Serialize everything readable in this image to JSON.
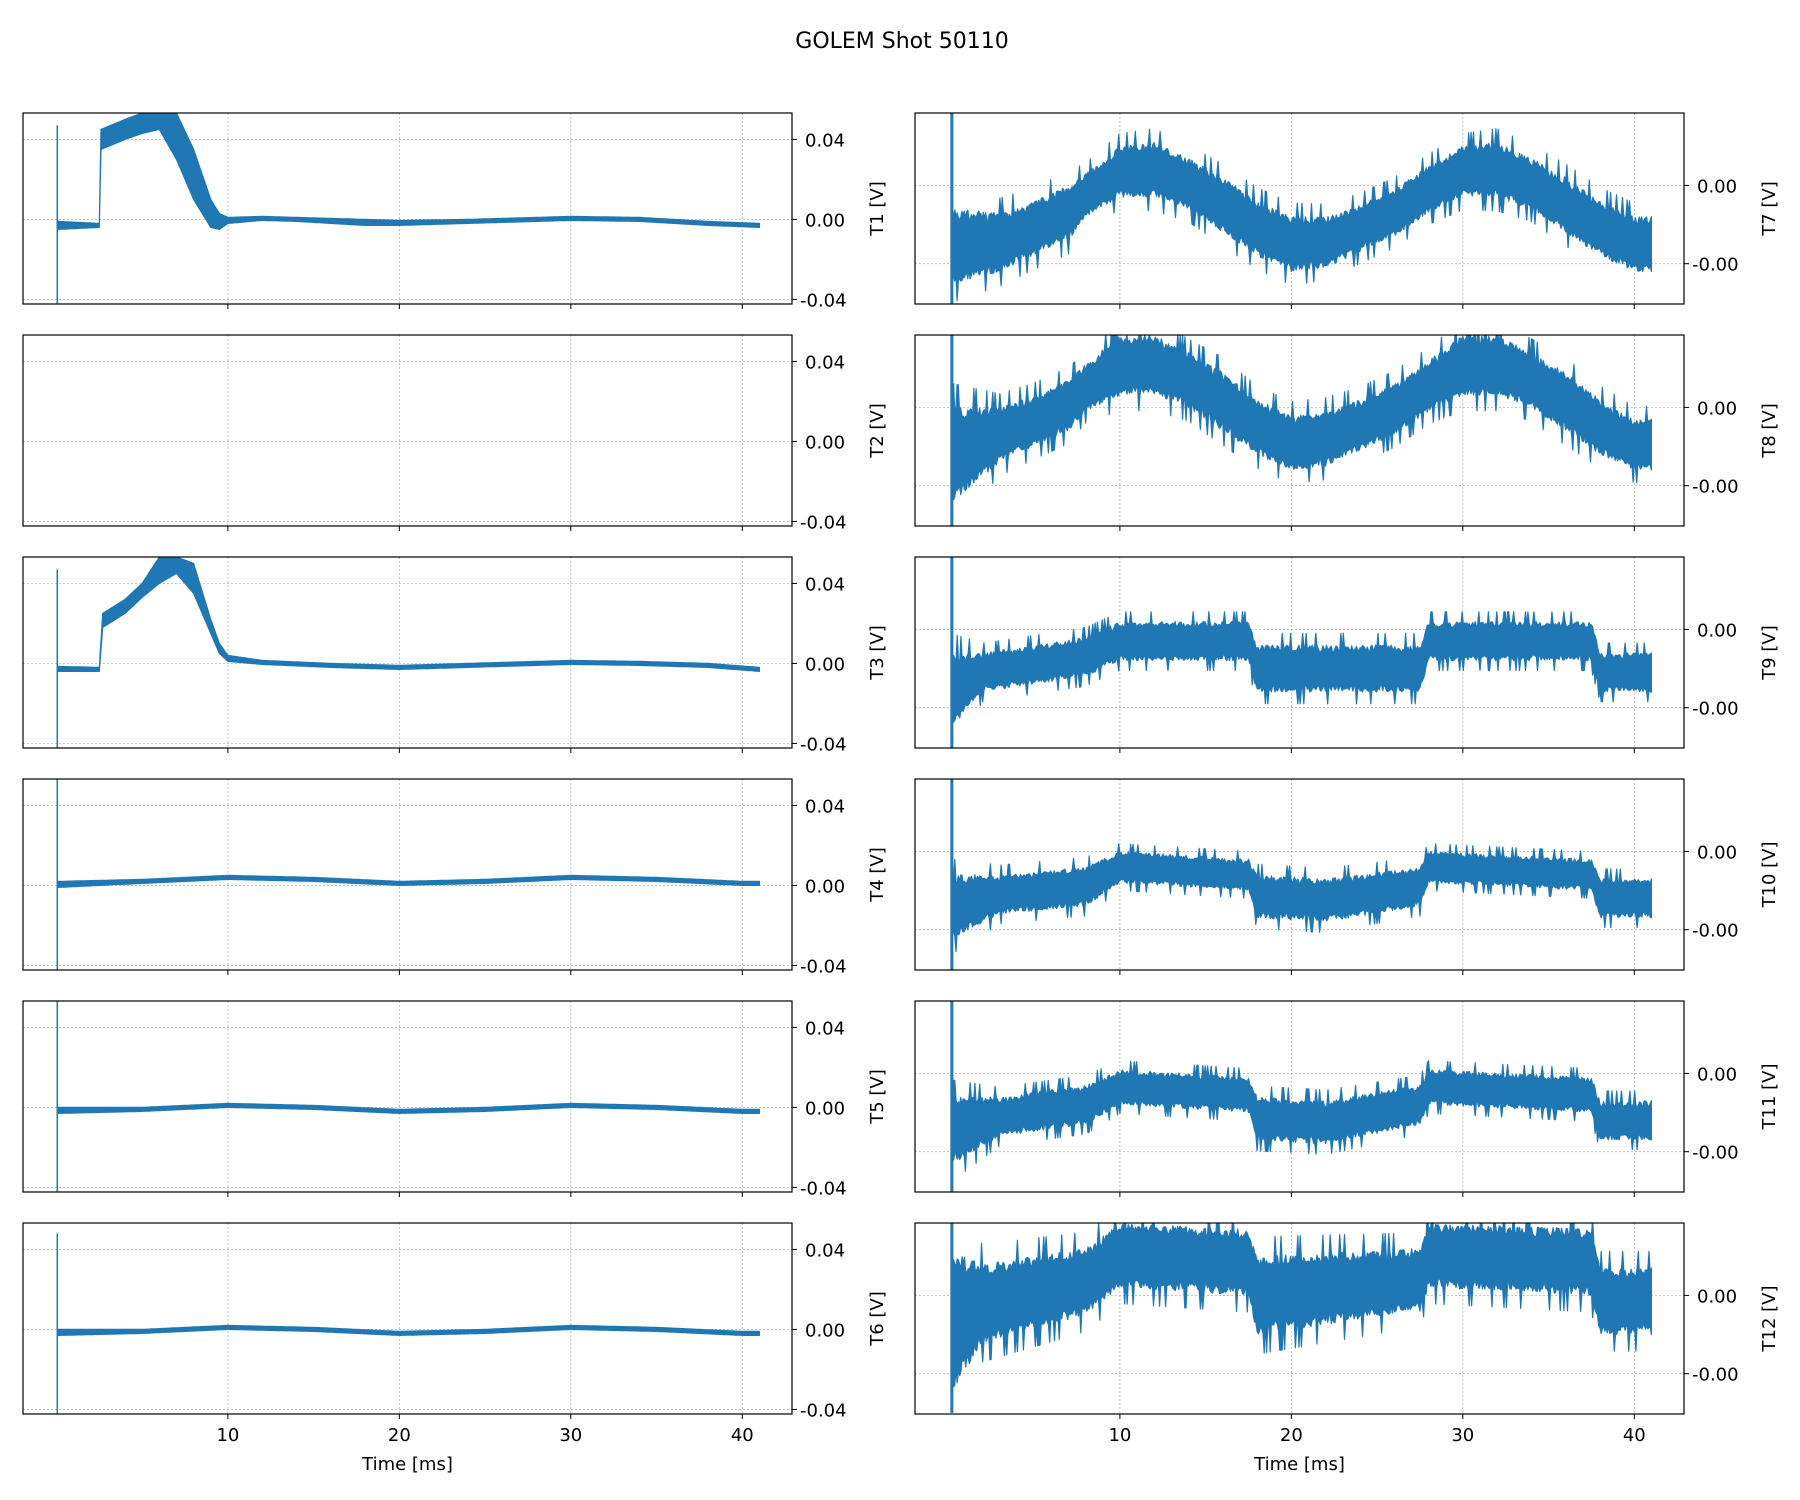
{
  "chart_data": {
    "type": "line",
    "title": "GOLEM Shot 50110",
    "xlabel": "Time [ms]",
    "xlim": [
      -1.95,
      42.9
    ],
    "xticks": [
      {
        "value": 10,
        "label": "10"
      },
      {
        "value": 20,
        "label": "20"
      },
      {
        "value": 30,
        "label": "30"
      },
      {
        "value": 40,
        "label": "40"
      }
    ],
    "color": "#1f77b4",
    "grid": true,
    "envelope_format": "[time_ms, min_V, max_V]",
    "panels": [
      {
        "ylabel": "T1 [V]",
        "column": "left",
        "ylim": [
          -0.0423,
          0.0532
        ],
        "yticks": [
          {
            "value": 0.04,
            "label": "0.04"
          },
          {
            "value": 0.0,
            "label": "0.00"
          },
          {
            "value": -0.04,
            "label": "-0.04"
          }
        ],
        "spike": [
          0.05,
          -0.0423,
          0.047
        ],
        "envelope": [
          [
            0.1,
            -0.005,
            -0.001
          ],
          [
            2.5,
            -0.004,
            -0.002
          ],
          [
            2.6,
            0.035,
            0.045
          ],
          [
            4,
            0.04,
            0.05
          ],
          [
            5,
            0.043,
            0.0532
          ],
          [
            6,
            0.045,
            0.0532
          ],
          [
            7,
            0.03,
            0.0532
          ],
          [
            8,
            0.01,
            0.035
          ],
          [
            9,
            -0.004,
            0.01
          ],
          [
            9.5,
            -0.005,
            0.003
          ],
          [
            10,
            -0.002,
            0.001
          ],
          [
            12,
            -0.0005,
            0.0015
          ],
          [
            14,
            -0.001,
            0.001
          ],
          [
            18,
            -0.003,
            0.0
          ],
          [
            20,
            -0.003,
            -0.0005
          ],
          [
            24,
            -0.002,
            0.0
          ],
          [
            28,
            -0.001,
            0.001
          ],
          [
            30,
            -0.0005,
            0.0015
          ],
          [
            34,
            -0.001,
            0.001
          ],
          [
            38,
            -0.003,
            -0.001
          ],
          [
            41,
            -0.004,
            -0.002
          ]
        ]
      },
      {
        "ylabel": "T2 [V]",
        "column": "left",
        "ylim": [
          -0.0423,
          0.0532
        ],
        "yticks": [
          {
            "value": 0.04,
            "label": "0.04"
          },
          {
            "value": 0.0,
            "label": "0.00"
          },
          {
            "value": -0.04,
            "label": "-0.04"
          }
        ],
        "spike": null,
        "envelope": []
      },
      {
        "ylabel": "T3 [V]",
        "column": "left",
        "ylim": [
          -0.0423,
          0.0532
        ],
        "yticks": [
          {
            "value": 0.04,
            "label": "0.04"
          },
          {
            "value": 0.0,
            "label": "0.00"
          },
          {
            "value": -0.04,
            "label": "-0.04"
          }
        ],
        "spike": [
          0.05,
          -0.0423,
          0.047
        ],
        "envelope": [
          [
            0.1,
            -0.004,
            -0.0015
          ],
          [
            2.5,
            -0.004,
            -0.002
          ],
          [
            2.7,
            0.018,
            0.025
          ],
          [
            4,
            0.025,
            0.032
          ],
          [
            5,
            0.033,
            0.04
          ],
          [
            6,
            0.04,
            0.0532
          ],
          [
            7,
            0.045,
            0.0532
          ],
          [
            8,
            0.035,
            0.05
          ],
          [
            9,
            0.015,
            0.022
          ],
          [
            9.5,
            0.005,
            0.01
          ],
          [
            10,
            0.001,
            0.004
          ],
          [
            12,
            -0.0005,
            0.0015
          ],
          [
            16,
            -0.002,
            0.0
          ],
          [
            20,
            -0.003,
            -0.001
          ],
          [
            24,
            -0.002,
            0.0
          ],
          [
            28,
            -0.001,
            0.001
          ],
          [
            30,
            -0.0005,
            0.0015
          ],
          [
            34,
            -0.001,
            0.001
          ],
          [
            38,
            -0.002,
            0.0
          ],
          [
            41,
            -0.004,
            -0.002
          ]
        ]
      },
      {
        "ylabel": "T4 [V]",
        "column": "left",
        "ylim": [
          -0.0423,
          0.0532
        ],
        "yticks": [
          {
            "value": 0.04,
            "label": "0.04"
          },
          {
            "value": 0.0,
            "label": "0.00"
          },
          {
            "value": -0.04,
            "label": "-0.04"
          }
        ],
        "spike": [
          0.05,
          -0.0423,
          0.0532
        ],
        "envelope": [
          [
            0.1,
            -0.001,
            0.002
          ],
          [
            5,
            0.001,
            0.003
          ],
          [
            10,
            0.003,
            0.005
          ],
          [
            15,
            0.002,
            0.004
          ],
          [
            20,
            0.0,
            0.002
          ],
          [
            25,
            0.001,
            0.003
          ],
          [
            30,
            0.003,
            0.005
          ],
          [
            35,
            0.002,
            0.004
          ],
          [
            40,
            0.0,
            0.002
          ],
          [
            41,
            0.0,
            0.002
          ]
        ]
      },
      {
        "ylabel": "T5 [V]",
        "column": "left",
        "ylim": [
          -0.0423,
          0.0532
        ],
        "yticks": [
          {
            "value": 0.04,
            "label": "0.04"
          },
          {
            "value": 0.0,
            "label": "0.00"
          },
          {
            "value": -0.04,
            "label": "-0.04"
          }
        ],
        "spike": [
          0.05,
          -0.0423,
          0.0532
        ],
        "envelope": [
          [
            0.1,
            -0.003,
            0.0
          ],
          [
            5,
            -0.002,
            0.0
          ],
          [
            10,
            0.0,
            0.002
          ],
          [
            15,
            -0.001,
            0.001
          ],
          [
            20,
            -0.003,
            -0.001
          ],
          [
            25,
            -0.002,
            0.0
          ],
          [
            30,
            0.0,
            0.002
          ],
          [
            35,
            -0.001,
            0.001
          ],
          [
            40,
            -0.003,
            -0.001
          ],
          [
            41,
            -0.003,
            -0.001
          ]
        ]
      },
      {
        "ylabel": "T6 [V]",
        "column": "left",
        "ylim": [
          -0.0423,
          0.0532
        ],
        "yticks": [
          {
            "value": 0.04,
            "label": "0.04"
          },
          {
            "value": 0.0,
            "label": "0.00"
          },
          {
            "value": -0.04,
            "label": "-0.04"
          }
        ],
        "spike": [
          0.05,
          -0.0423,
          0.048
        ],
        "envelope": [
          [
            0.1,
            -0.003,
            0.0
          ],
          [
            5,
            -0.002,
            0.0
          ],
          [
            10,
            0.0,
            0.002
          ],
          [
            15,
            -0.001,
            0.001
          ],
          [
            20,
            -0.003,
            -0.001
          ],
          [
            25,
            -0.002,
            0.0
          ],
          [
            30,
            0.0,
            0.002
          ],
          [
            35,
            -0.001,
            0.001
          ],
          [
            40,
            -0.003,
            -0.001
          ],
          [
            41,
            -0.003,
            -0.001
          ]
        ]
      },
      {
        "ylabel": "T7 [V]",
        "column": "right",
        "ylim": [
          -0.00203,
          0.00285
        ],
        "yticks": [
          {
            "value": 0.001,
            "label": "0.00"
          },
          {
            "value": -0.001,
            "label": "-0.00"
          }
        ],
        "spike": [
          0.2,
          -0.00203,
          0.00285
        ],
        "envelope": [
          [
            0.3,
            -0.0015,
            0.0004
          ],
          [
            3,
            -0.0012,
            0.0003
          ],
          [
            5,
            -0.0008,
            0.0006
          ],
          [
            7,
            -0.0004,
            0.001
          ],
          [
            8,
            0.0002,
            0.0013
          ],
          [
            10,
            0.0007,
            0.002
          ],
          [
            12,
            0.0007,
            0.0021
          ],
          [
            14,
            0.0004,
            0.0017
          ],
          [
            16,
            -0.0002,
            0.0012
          ],
          [
            18,
            -0.0008,
            0.0006
          ],
          [
            20,
            -0.0012,
            0.0002
          ],
          [
            22,
            -0.0011,
            0.0002
          ],
          [
            24,
            -0.0007,
            0.0005
          ],
          [
            26,
            -0.0003,
            0.0009
          ],
          [
            28,
            0.0003,
            0.0015
          ],
          [
            30,
            0.0007,
            0.002
          ],
          [
            32,
            0.0007,
            0.0021
          ],
          [
            34,
            0.0004,
            0.0017
          ],
          [
            36,
            -0.0002,
            0.0012
          ],
          [
            38,
            -0.0008,
            0.0006
          ],
          [
            40,
            -0.0012,
            0.0002
          ],
          [
            41,
            -0.0012,
            0.0002
          ]
        ]
      },
      {
        "ylabel": "T8 [V]",
        "column": "right",
        "ylim": [
          -0.00203,
          0.00285
        ],
        "yticks": [
          {
            "value": 0.001,
            "label": "0.00"
          },
          {
            "value": -0.001,
            "label": "-0.00"
          }
        ],
        "spike": [
          0.2,
          -0.00203,
          0.00285
        ],
        "envelope": [
          [
            0.3,
            -0.0014,
            0.001
          ],
          [
            3,
            -0.0004,
            0.001
          ],
          [
            5,
            0.0,
            0.0013
          ],
          [
            7,
            0.0004,
            0.0017
          ],
          [
            8,
            0.0009,
            0.0021
          ],
          [
            10,
            0.0013,
            0.00285
          ],
          [
            12,
            0.0013,
            0.00285
          ],
          [
            14,
            0.001,
            0.0024
          ],
          [
            16,
            0.0004,
            0.0019
          ],
          [
            18,
            -0.0002,
            0.0012
          ],
          [
            20,
            -0.0006,
            0.0008
          ],
          [
            22,
            -0.0005,
            0.0009
          ],
          [
            24,
            -0.0001,
            0.0012
          ],
          [
            26,
            0.0003,
            0.0016
          ],
          [
            28,
            0.0009,
            0.0022
          ],
          [
            30,
            0.0013,
            0.00285
          ],
          [
            32,
            0.0013,
            0.00285
          ],
          [
            34,
            0.001,
            0.0024
          ],
          [
            36,
            0.0004,
            0.0019
          ],
          [
            38,
            -0.0002,
            0.0012
          ],
          [
            40,
            -0.0006,
            0.0007
          ],
          [
            41,
            -0.0006,
            0.0007
          ]
        ]
      },
      {
        "ylabel": "T9 [V]",
        "column": "right",
        "ylim": [
          -0.00203,
          0.00285
        ],
        "yticks": [
          {
            "value": 0.001,
            "label": "0.00"
          },
          {
            "value": -0.001,
            "label": "-0.00"
          }
        ],
        "spike": [
          0.2,
          -0.00203,
          0.00285
        ],
        "envelope": [
          [
            0.3,
            -0.0015,
            0.0004
          ],
          [
            2,
            -0.0006,
            0.0004
          ],
          [
            8,
            -0.0002,
            0.0008
          ],
          [
            10,
            0.0002,
            0.0012
          ],
          [
            17.5,
            0.0002,
            0.0012
          ],
          [
            18,
            -0.0006,
            0.0006
          ],
          [
            27.5,
            -0.0006,
            0.0006
          ],
          [
            28,
            0.0002,
            0.0012
          ],
          [
            37.5,
            0.0002,
            0.0012
          ],
          [
            38,
            -0.0006,
            0.0004
          ],
          [
            41,
            -0.0006,
            0.0004
          ]
        ]
      },
      {
        "ylabel": "T10 [V]",
        "column": "right",
        "ylim": [
          -0.00203,
          0.00285
        ],
        "yticks": [
          {
            "value": 0.001,
            "label": "0.00"
          },
          {
            "value": -0.001,
            "label": "-0.00"
          }
        ],
        "spike": [
          0.2,
          -0.00203,
          0.00285
        ],
        "envelope": [
          [
            0.3,
            -0.0012,
            0.0004
          ],
          [
            3,
            -0.0006,
            0.0004
          ],
          [
            8,
            -0.0004,
            0.0006
          ],
          [
            10,
            0.0002,
            0.001
          ],
          [
            17.5,
            0.0,
            0.0008
          ],
          [
            18,
            -0.0007,
            0.0004
          ],
          [
            22,
            -0.0008,
            0.0003
          ],
          [
            27.5,
            -0.0004,
            0.0006
          ],
          [
            28,
            0.0002,
            0.001
          ],
          [
            37.5,
            0.0,
            0.0008
          ],
          [
            38,
            -0.0007,
            0.0003
          ],
          [
            41,
            -0.0007,
            0.0003
          ]
        ]
      },
      {
        "ylabel": "T11 [V]",
        "column": "right",
        "ylim": [
          -0.00203,
          0.00285
        ],
        "yticks": [
          {
            "value": 0.001,
            "label": "0.00"
          },
          {
            "value": -0.001,
            "label": "-0.00"
          }
        ],
        "spike": [
          0.2,
          -0.00203,
          0.00285
        ],
        "envelope": [
          [
            0.3,
            -0.0013,
            0.0004
          ],
          [
            3,
            -0.0006,
            0.0004
          ],
          [
            8,
            -0.0003,
            0.0007
          ],
          [
            10,
            0.0002,
            0.0011
          ],
          [
            17.5,
            0.0,
            0.0009
          ],
          [
            18,
            -0.0007,
            0.0004
          ],
          [
            22,
            -0.0008,
            0.0003
          ],
          [
            27.5,
            -0.0003,
            0.0007
          ],
          [
            28,
            0.0002,
            0.0011
          ],
          [
            37.5,
            0.0,
            0.0009
          ],
          [
            38,
            -0.0007,
            0.0003
          ],
          [
            41,
            -0.0007,
            0.0003
          ]
        ]
      },
      {
        "ylabel": "T12 [V]",
        "column": "right",
        "ylim": [
          -0.00203,
          0.00285
        ],
        "yticks": [
          {
            "value": 0.001,
            "label": "0.00"
          },
          {
            "value": -0.001,
            "label": "-0.00"
          }
        ],
        "spike": [
          0.2,
          -0.002,
          0.00285
        ],
        "envelope": [
          [
            0.3,
            -0.0014,
            0.0022
          ],
          [
            2,
            -0.0002,
            0.0018
          ],
          [
            8,
            0.0005,
            0.0022
          ],
          [
            10,
            0.0012,
            0.00285
          ],
          [
            17.5,
            0.001,
            0.0027
          ],
          [
            18,
            0.0,
            0.002
          ],
          [
            27.5,
            0.0006,
            0.0022
          ],
          [
            28,
            0.0012,
            0.00285
          ],
          [
            37.5,
            0.001,
            0.0027
          ],
          [
            38,
            0.0,
            0.0017
          ],
          [
            41,
            0.0,
            0.0017
          ]
        ]
      }
    ]
  }
}
